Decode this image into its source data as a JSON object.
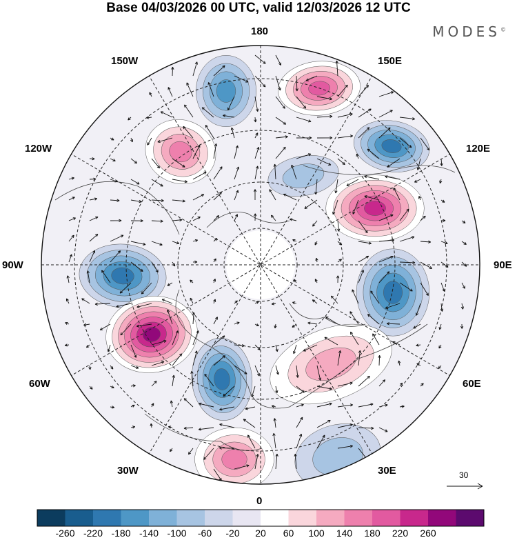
{
  "title": "Base 04/03/2026 00 UTC, valid 12/03/2026 12 UTC",
  "brand": "MODES",
  "brand_mark": "©",
  "longitude_labels": {
    "top": "180",
    "bottom": "0",
    "left": "90W",
    "right": "90E",
    "upper_left": "150W",
    "upper_left_mid": "120W",
    "lower_left_mid": "60W",
    "lower_left": "30W",
    "upper_right": "150E",
    "upper_right_mid": "120E",
    "lower_right_mid": "60E",
    "lower_right": "30E"
  },
  "wind_reference": "30",
  "colorbar": {
    "labels": [
      "-260",
      "-220",
      "-180",
      "-140",
      "-100",
      "-60",
      "-20",
      "20",
      "60",
      "100",
      "140",
      "180",
      "220",
      "260"
    ],
    "colors": [
      "#0c3c5e",
      "#195d8e",
      "#2f78b0",
      "#4e97c6",
      "#7fb1d8",
      "#a7c4e2",
      "#cdd6ea",
      "#e8e6f2",
      "#ffffff",
      "#fad6dc",
      "#f5aac0",
      "#ee80ad",
      "#e25aa0",
      "#c8288c",
      "#92087a",
      "#5c0a6e"
    ]
  },
  "anomalies": [
    {
      "name": "high-east-siberia",
      "value": 200
    },
    {
      "name": "low-alaska-gulf",
      "value": -160
    },
    {
      "name": "high-alaska",
      "value": 140
    },
    {
      "name": "low-kamchatka-sea",
      "value": -180
    },
    {
      "name": "high-siberia",
      "value": 240
    },
    {
      "name": "low-hudson",
      "value": -200
    },
    {
      "name": "low-central-asia",
      "value": -180
    },
    {
      "name": "high-newfoundland",
      "value": 260
    },
    {
      "name": "low-greenland-sea",
      "value": -200
    },
    {
      "name": "high-europe",
      "value": 100
    },
    {
      "name": "low-north-africa",
      "value": -80
    },
    {
      "name": "high-atlantic",
      "value": 140
    },
    {
      "name": "low-pacific-east",
      "value": -60
    }
  ]
}
